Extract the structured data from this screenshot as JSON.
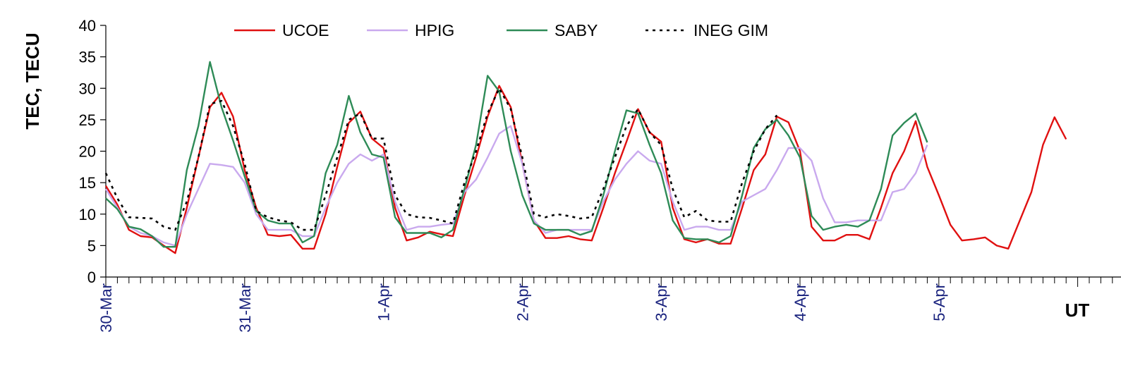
{
  "chart_data": {
    "type": "line",
    "title": "",
    "xlabel": "UT",
    "ylabel": "TEC, TECU",
    "ylim": [
      0,
      40
    ],
    "yticks": [
      0,
      5,
      10,
      15,
      20,
      25,
      30,
      35,
      40
    ],
    "xlim": [
      "30-Mar 00:00",
      "6-Apr 22:00"
    ],
    "x_step_hours": 2,
    "date_labels": [
      "30-Mar",
      "31-Mar",
      "1-Apr",
      "2-Apr",
      "3-Apr",
      "4-Apr",
      "5-Apr"
    ],
    "grid": false,
    "legend_position": "top",
    "series": [
      {
        "name": "UCOE",
        "color": "#e01010",
        "dash": "solid",
        "values": [
          14.5,
          11.5,
          7.5,
          6.5,
          6.3,
          5,
          3.8,
          11,
          19,
          27,
          29.3,
          25.5,
          17,
          11,
          6.7,
          6.5,
          6.7,
          4.5,
          4.5,
          10,
          17.5,
          24.5,
          26.3,
          22,
          20.5,
          11,
          5.8,
          6.3,
          7.2,
          6.8,
          6.5,
          13,
          19,
          25.5,
          30.4,
          27,
          18,
          9,
          6.2,
          6.2,
          6.5,
          6,
          5.8,
          11,
          16.5,
          21.5,
          26.7,
          23,
          21.5,
          11,
          6,
          5.5,
          6,
          5.3,
          5.3,
          11,
          17,
          19.5,
          25.5,
          24.6,
          20,
          8,
          5.8,
          5.8,
          6.7,
          6.7,
          6,
          11,
          16.5,
          20,
          24.8,
          17.5,
          13,
          8.3,
          5.8,
          6,
          6.3,
          5,
          4.5,
          9,
          13.5,
          21,
          25.4,
          21.9
        ]
      },
      {
        "name": "HPIG",
        "color": "#c9a9ee",
        "dash": "solid",
        "values": [
          14,
          11,
          8,
          7,
          6.5,
          5.5,
          5,
          10,
          14,
          18,
          17.8,
          17.5,
          15,
          10,
          7.5,
          7.5,
          7.5,
          6.5,
          6.5,
          11,
          15,
          18,
          19.5,
          18.5,
          19.5,
          12,
          7.5,
          8,
          8,
          8.3,
          8.5,
          13.5,
          15.5,
          19,
          22.8,
          24,
          18,
          9,
          7,
          7.5,
          7.5,
          7.5,
          7.5,
          12,
          15.5,
          18,
          20,
          18.5,
          18,
          12,
          7.5,
          8,
          8,
          7.5,
          7.5,
          12,
          13,
          14,
          17,
          20.5,
          20.5,
          18.5,
          12.5,
          8.7,
          8.7,
          9,
          9,
          9,
          13.5,
          14,
          16.5,
          21,
          null,
          null,
          null,
          null,
          null,
          null,
          null,
          null,
          null,
          null,
          null,
          null
        ]
      },
      {
        "name": "SABY",
        "color": "#2e8b57",
        "dash": "solid",
        "values": [
          12.5,
          10.8,
          8,
          7.6,
          6.5,
          4.8,
          4.8,
          17,
          24,
          34.2,
          27,
          21.7,
          16,
          10.5,
          9,
          8.5,
          8.5,
          5.5,
          6.5,
          16.5,
          21,
          28.8,
          23,
          19.5,
          19,
          9.5,
          7,
          7,
          7,
          6.3,
          7.5,
          14,
          21,
          32,
          29.5,
          20,
          13,
          8.5,
          7.5,
          7.5,
          7.5,
          6.7,
          7.3,
          13,
          20,
          26.5,
          26,
          21,
          16.5,
          9,
          6.2,
          6,
          6,
          5.5,
          6.5,
          13,
          20.5,
          23.5,
          25,
          22.5,
          19,
          9.7,
          7.5,
          8,
          8.3,
          8,
          9,
          14,
          22.5,
          24.5,
          26,
          21.4,
          null,
          null,
          null,
          null,
          null,
          null,
          null,
          null,
          null,
          null,
          null,
          null
        ]
      },
      {
        "name": "INEG GIM",
        "color": "#000000",
        "dash": "dotted",
        "values": [
          16.5,
          12.5,
          9.5,
          9.4,
          9.3,
          8,
          7.5,
          12,
          19,
          27.5,
          28,
          24,
          18,
          10.5,
          9.5,
          9,
          8.7,
          7.5,
          7.5,
          13,
          19,
          25,
          26,
          22,
          22,
          13,
          10,
          9.5,
          9.4,
          9,
          8.5,
          15,
          20,
          26,
          30,
          26.7,
          19,
          10,
          9.5,
          10,
          9.7,
          9.3,
          9.5,
          14,
          19,
          24,
          26.7,
          23,
          21,
          14,
          9.5,
          10.5,
          9,
          8.8,
          8.8,
          15,
          20,
          23.5,
          25.7,
          null,
          null,
          null,
          null,
          null,
          null,
          null,
          null,
          null,
          null,
          null,
          null,
          null,
          null,
          null,
          null,
          null,
          null,
          null,
          null,
          null,
          null,
          null,
          null,
          null
        ]
      }
    ]
  }
}
